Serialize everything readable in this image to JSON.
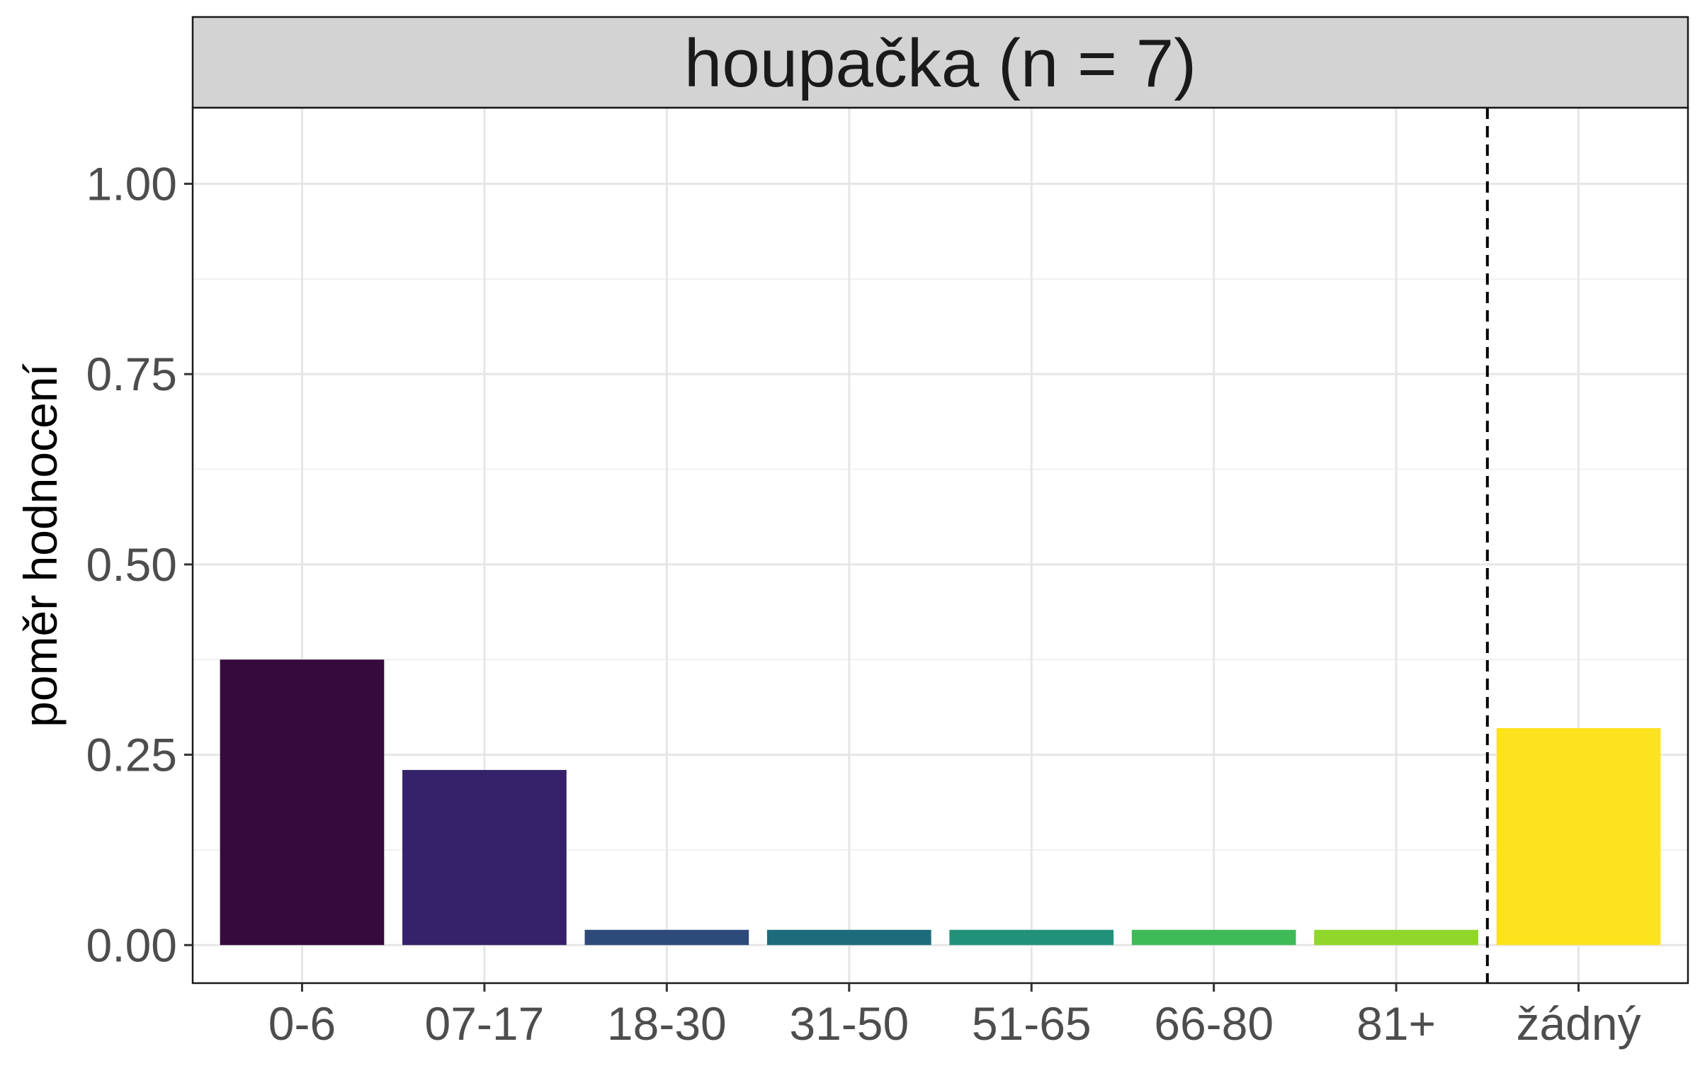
{
  "chart_data": {
    "type": "bar",
    "title": "houpačka (n = 7)",
    "xlabel": "",
    "ylabel": "poměr hodnocení",
    "categories": [
      "0-6",
      "07-17",
      "18-30",
      "31-50",
      "51-65",
      "66-80",
      "81+",
      "žádný"
    ],
    "values": [
      0.375,
      0.23,
      0.02,
      0.02,
      0.02,
      0.02,
      0.02,
      0.285
    ],
    "colors": [
      "#360a3c",
      "#35226a",
      "#2d4a7a",
      "#1e6b7b",
      "#22917a",
      "#3fba58",
      "#90d62b",
      "#fde31e"
    ],
    "ylim": [
      -0.05,
      1.1
    ],
    "yticks": [
      0.0,
      0.25,
      0.5,
      0.75,
      1.0
    ],
    "ytick_labels": [
      "0.00",
      "0.25",
      "0.50",
      "0.75",
      "1.00"
    ],
    "grid": true,
    "dashed_separator_between": [
      "81+",
      "žádný"
    ]
  }
}
